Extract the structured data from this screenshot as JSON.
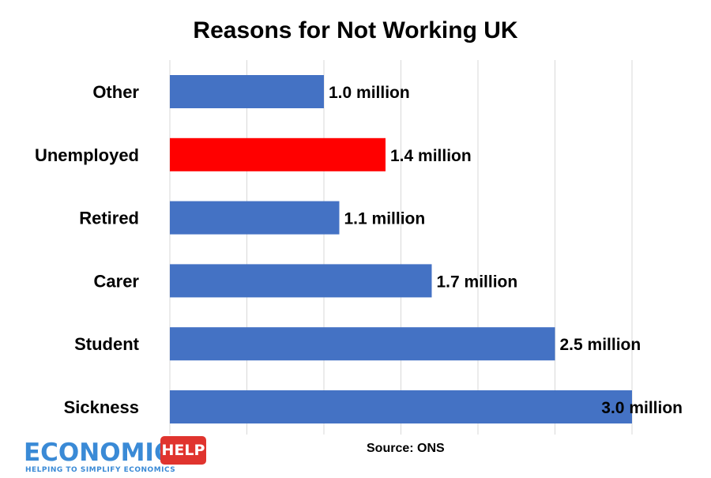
{
  "chart_data": {
    "type": "bar",
    "orientation": "horizontal",
    "title": "Reasons for Not Working UK",
    "categories": [
      "Other",
      "Unemployed",
      "Retired",
      "Carer",
      "Student",
      "Sickness"
    ],
    "values": [
      1.0,
      1.4,
      1.1,
      1.7,
      2.5,
      3.0
    ],
    "data_labels": [
      "1.0 million",
      "1.4 million",
      "1.1 million",
      "1.7 million",
      "2.5 million",
      "3.0 million"
    ],
    "unit": "million",
    "xlim": [
      0,
      3.0
    ],
    "grid": true,
    "colors": {
      "default_bar": "#4472c4",
      "highlight_bar": "#ff0000",
      "gridline": "#d9d9d9"
    },
    "highlight_category": "Unemployed"
  },
  "source": "Source: ONS",
  "logo": {
    "word": "ECONOMICS",
    "tag": "HELP",
    "tagline": "HELPING TO SIMPLIFY ECONOMICS"
  }
}
